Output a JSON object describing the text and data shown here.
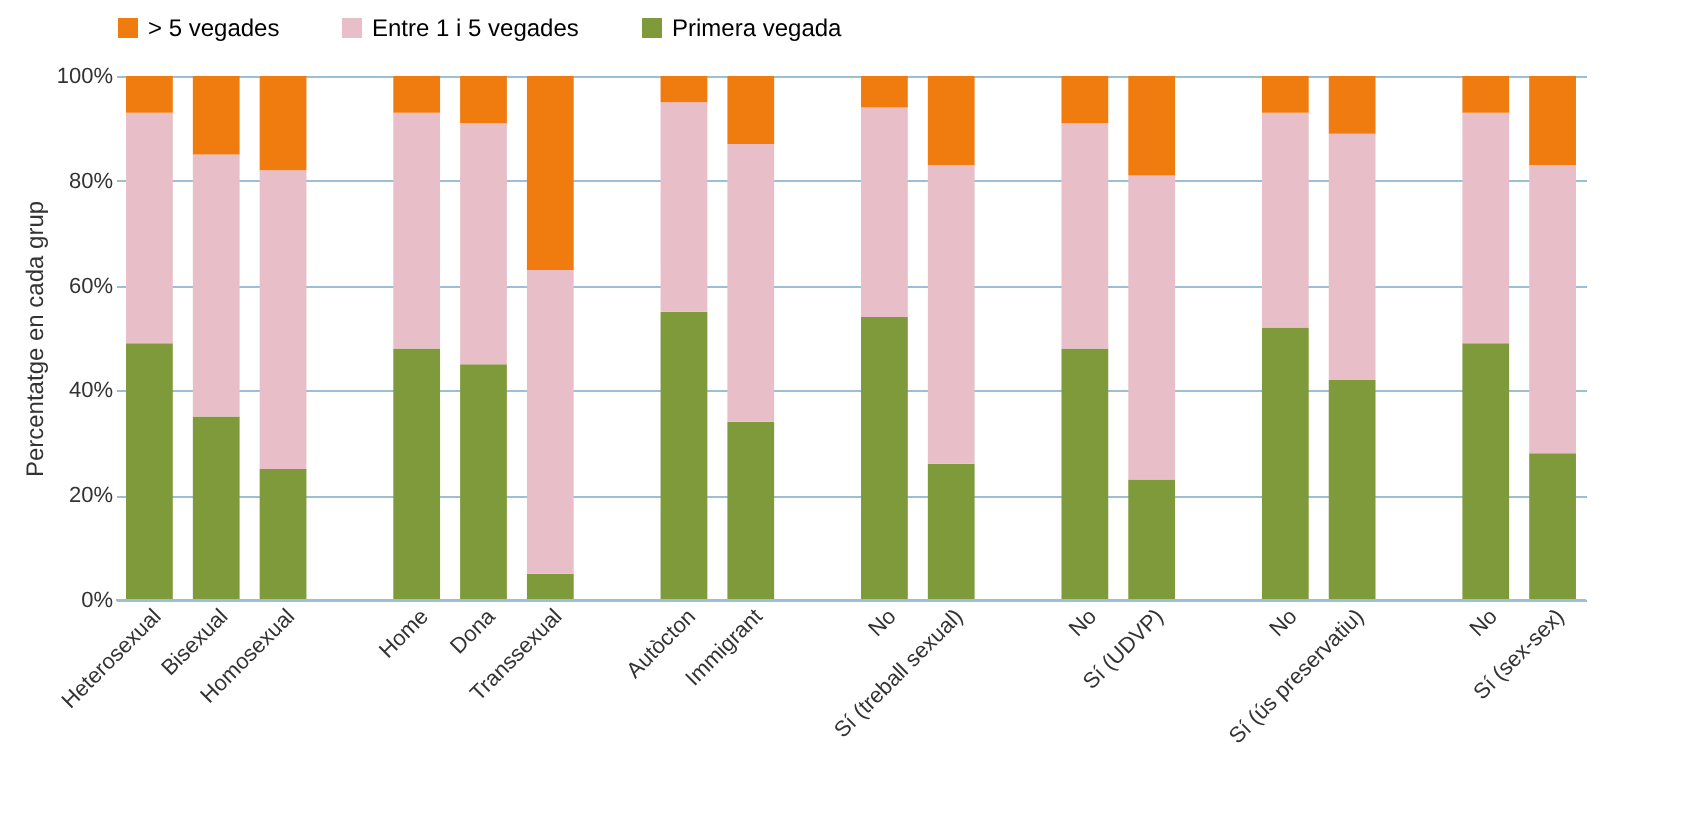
{
  "chart_data": {
    "type": "bar",
    "stacked": true,
    "ylabel": "Percentatge en cada grup",
    "categories": [
      "Heterosexual",
      "Bisexual",
      "Homosexual",
      null,
      "Home",
      "Dona",
      "Transsexual",
      null,
      "Autòcton",
      "Immigrant",
      null,
      "No",
      "Sí (treball sexual)",
      null,
      "No",
      "Sí (UDVP)",
      null,
      "No",
      "Sí (ús preservatiu)",
      null,
      "No",
      "Sí (sex-sex)"
    ],
    "series": [
      {
        "name": "Primera vegada",
        "color": "#7f9a3a",
        "values": [
          49,
          35,
          25,
          null,
          48,
          45,
          5,
          null,
          55,
          34,
          null,
          54,
          26,
          null,
          48,
          23,
          null,
          52,
          42,
          null,
          49,
          28
        ]
      },
      {
        "name": "Entre 1 i 5 vegades",
        "color": "#e8bfc8",
        "values": [
          44,
          50,
          57,
          null,
          45,
          46,
          58,
          null,
          40,
          53,
          null,
          40,
          57,
          null,
          43,
          58,
          null,
          41,
          47,
          null,
          44,
          55
        ]
      },
      {
        "name": "> 5 vegades",
        "color": "#f07c10",
        "values": [
          7,
          15,
          18,
          null,
          7,
          9,
          37,
          null,
          5,
          13,
          null,
          6,
          17,
          null,
          9,
          19,
          null,
          7,
          11,
          null,
          7,
          17
        ]
      }
    ],
    "ylim": [
      0,
      100
    ],
    "yticks": [
      {
        "value": 0,
        "label": "0%"
      },
      {
        "value": 20,
        "label": "20%"
      },
      {
        "value": 40,
        "label": "40%"
      },
      {
        "value": 60,
        "label": "60%"
      },
      {
        "value": 80,
        "label": "80%"
      },
      {
        "value": 100,
        "label": "100%"
      }
    ],
    "grid": "y",
    "legend": "top"
  }
}
